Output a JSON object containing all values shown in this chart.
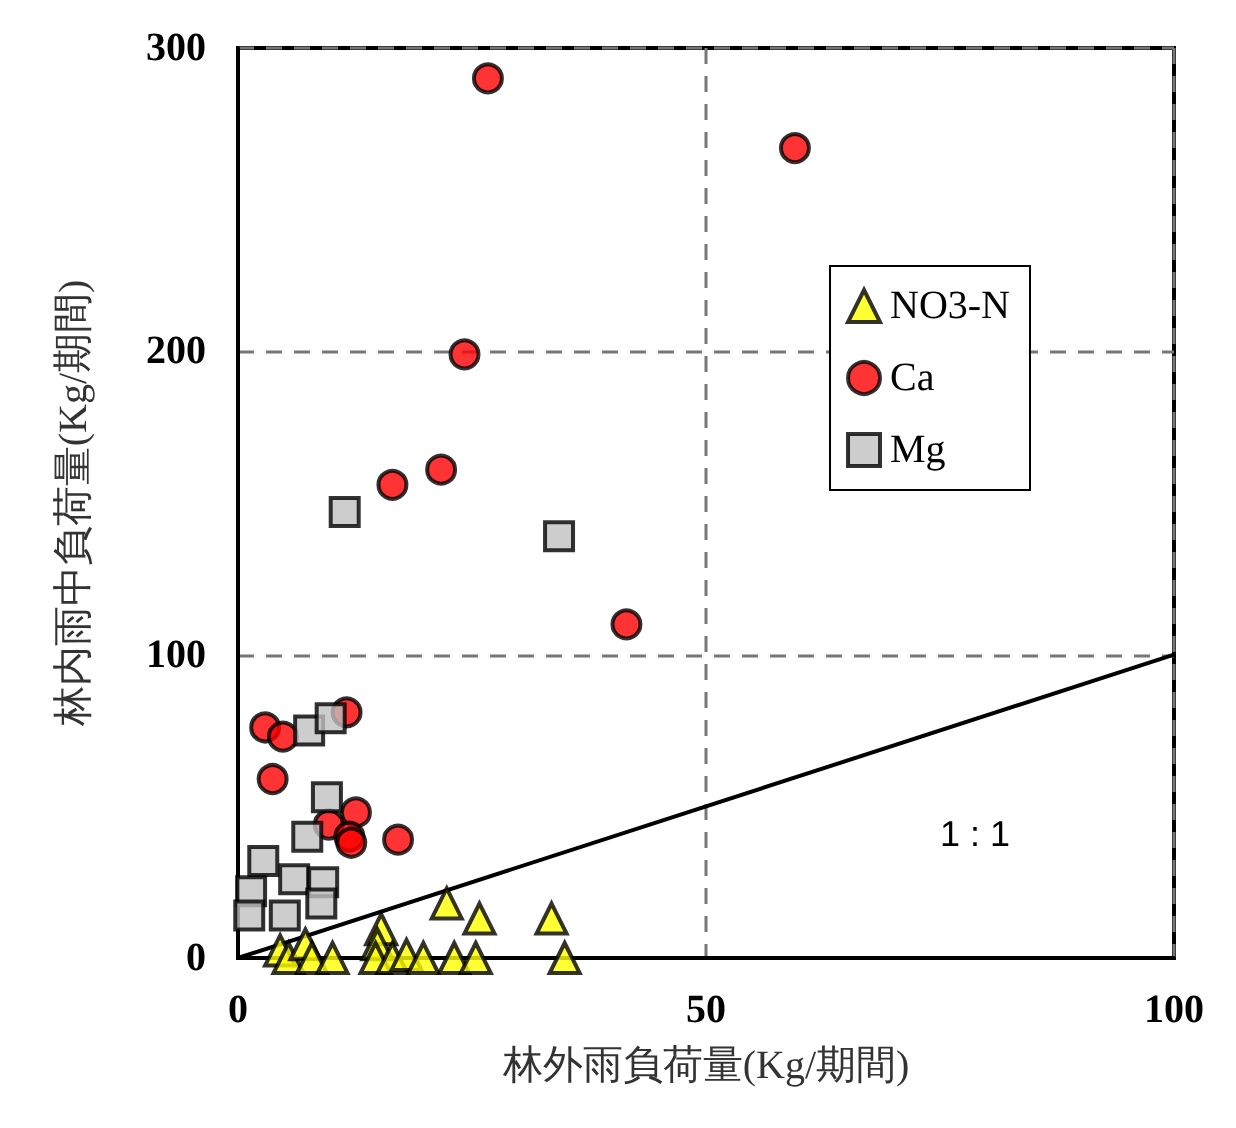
{
  "chart_data": {
    "type": "scatter",
    "xlabel": "林外雨負荷量(Kg/期間)",
    "ylabel": "林内雨中負荷量(Kg/期間)",
    "xlim": [
      0,
      100
    ],
    "xticks": [
      0,
      50,
      100
    ],
    "ylim": [
      0,
      300
    ],
    "yticks": [
      0,
      100,
      200,
      300
    ],
    "grid": true,
    "legend": "top right",
    "series": [
      {
        "name": "NO3-N",
        "color": "#ffff00",
        "marker": "triangle",
        "x": [
          22.3,
          25.8,
          33.5,
          15.3,
          14.9,
          34.9,
          4.5,
          5.4,
          7.2,
          7.9,
          10.1,
          14.7,
          16.5,
          18,
          19.8,
          23.1,
          25.4
        ],
        "values": [
          18,
          13,
          13,
          9.5,
          4.5,
          0,
          2.5,
          0,
          4.5,
          0,
          0,
          0,
          0,
          1,
          0,
          0,
          0
        ]
      },
      {
        "name": "Ca",
        "color": "#ff0000",
        "marker": "circle",
        "x": [
          26.7,
          59.5,
          24.2,
          16.5,
          21.7,
          41.5,
          11.6,
          2.9,
          4.8,
          3.7,
          12.6,
          9.7,
          11.9,
          12.1,
          17.1
        ],
        "values": [
          290,
          267,
          199,
          156,
          161,
          110,
          81,
          76,
          73,
          59,
          48,
          44,
          40,
          38,
          39
        ]
      },
      {
        "name": "Mg",
        "color": "#c0c0c0",
        "marker": "square",
        "x": [
          11.4,
          34.3,
          7.6,
          9.9,
          9.5,
          7.4,
          2.7,
          6,
          9.1,
          8.9,
          1.4,
          1.2,
          5
        ],
        "values": [
          147,
          139,
          75,
          79,
          53,
          40,
          32,
          26,
          25,
          18,
          22,
          14,
          14
        ]
      },
      {
        "type": "line",
        "color": "#000000",
        "marker": "none",
        "x": [
          0,
          100
        ],
        "values": [
          0,
          100
        ]
      }
    ],
    "annotations": [
      "1 : 1"
    ]
  }
}
